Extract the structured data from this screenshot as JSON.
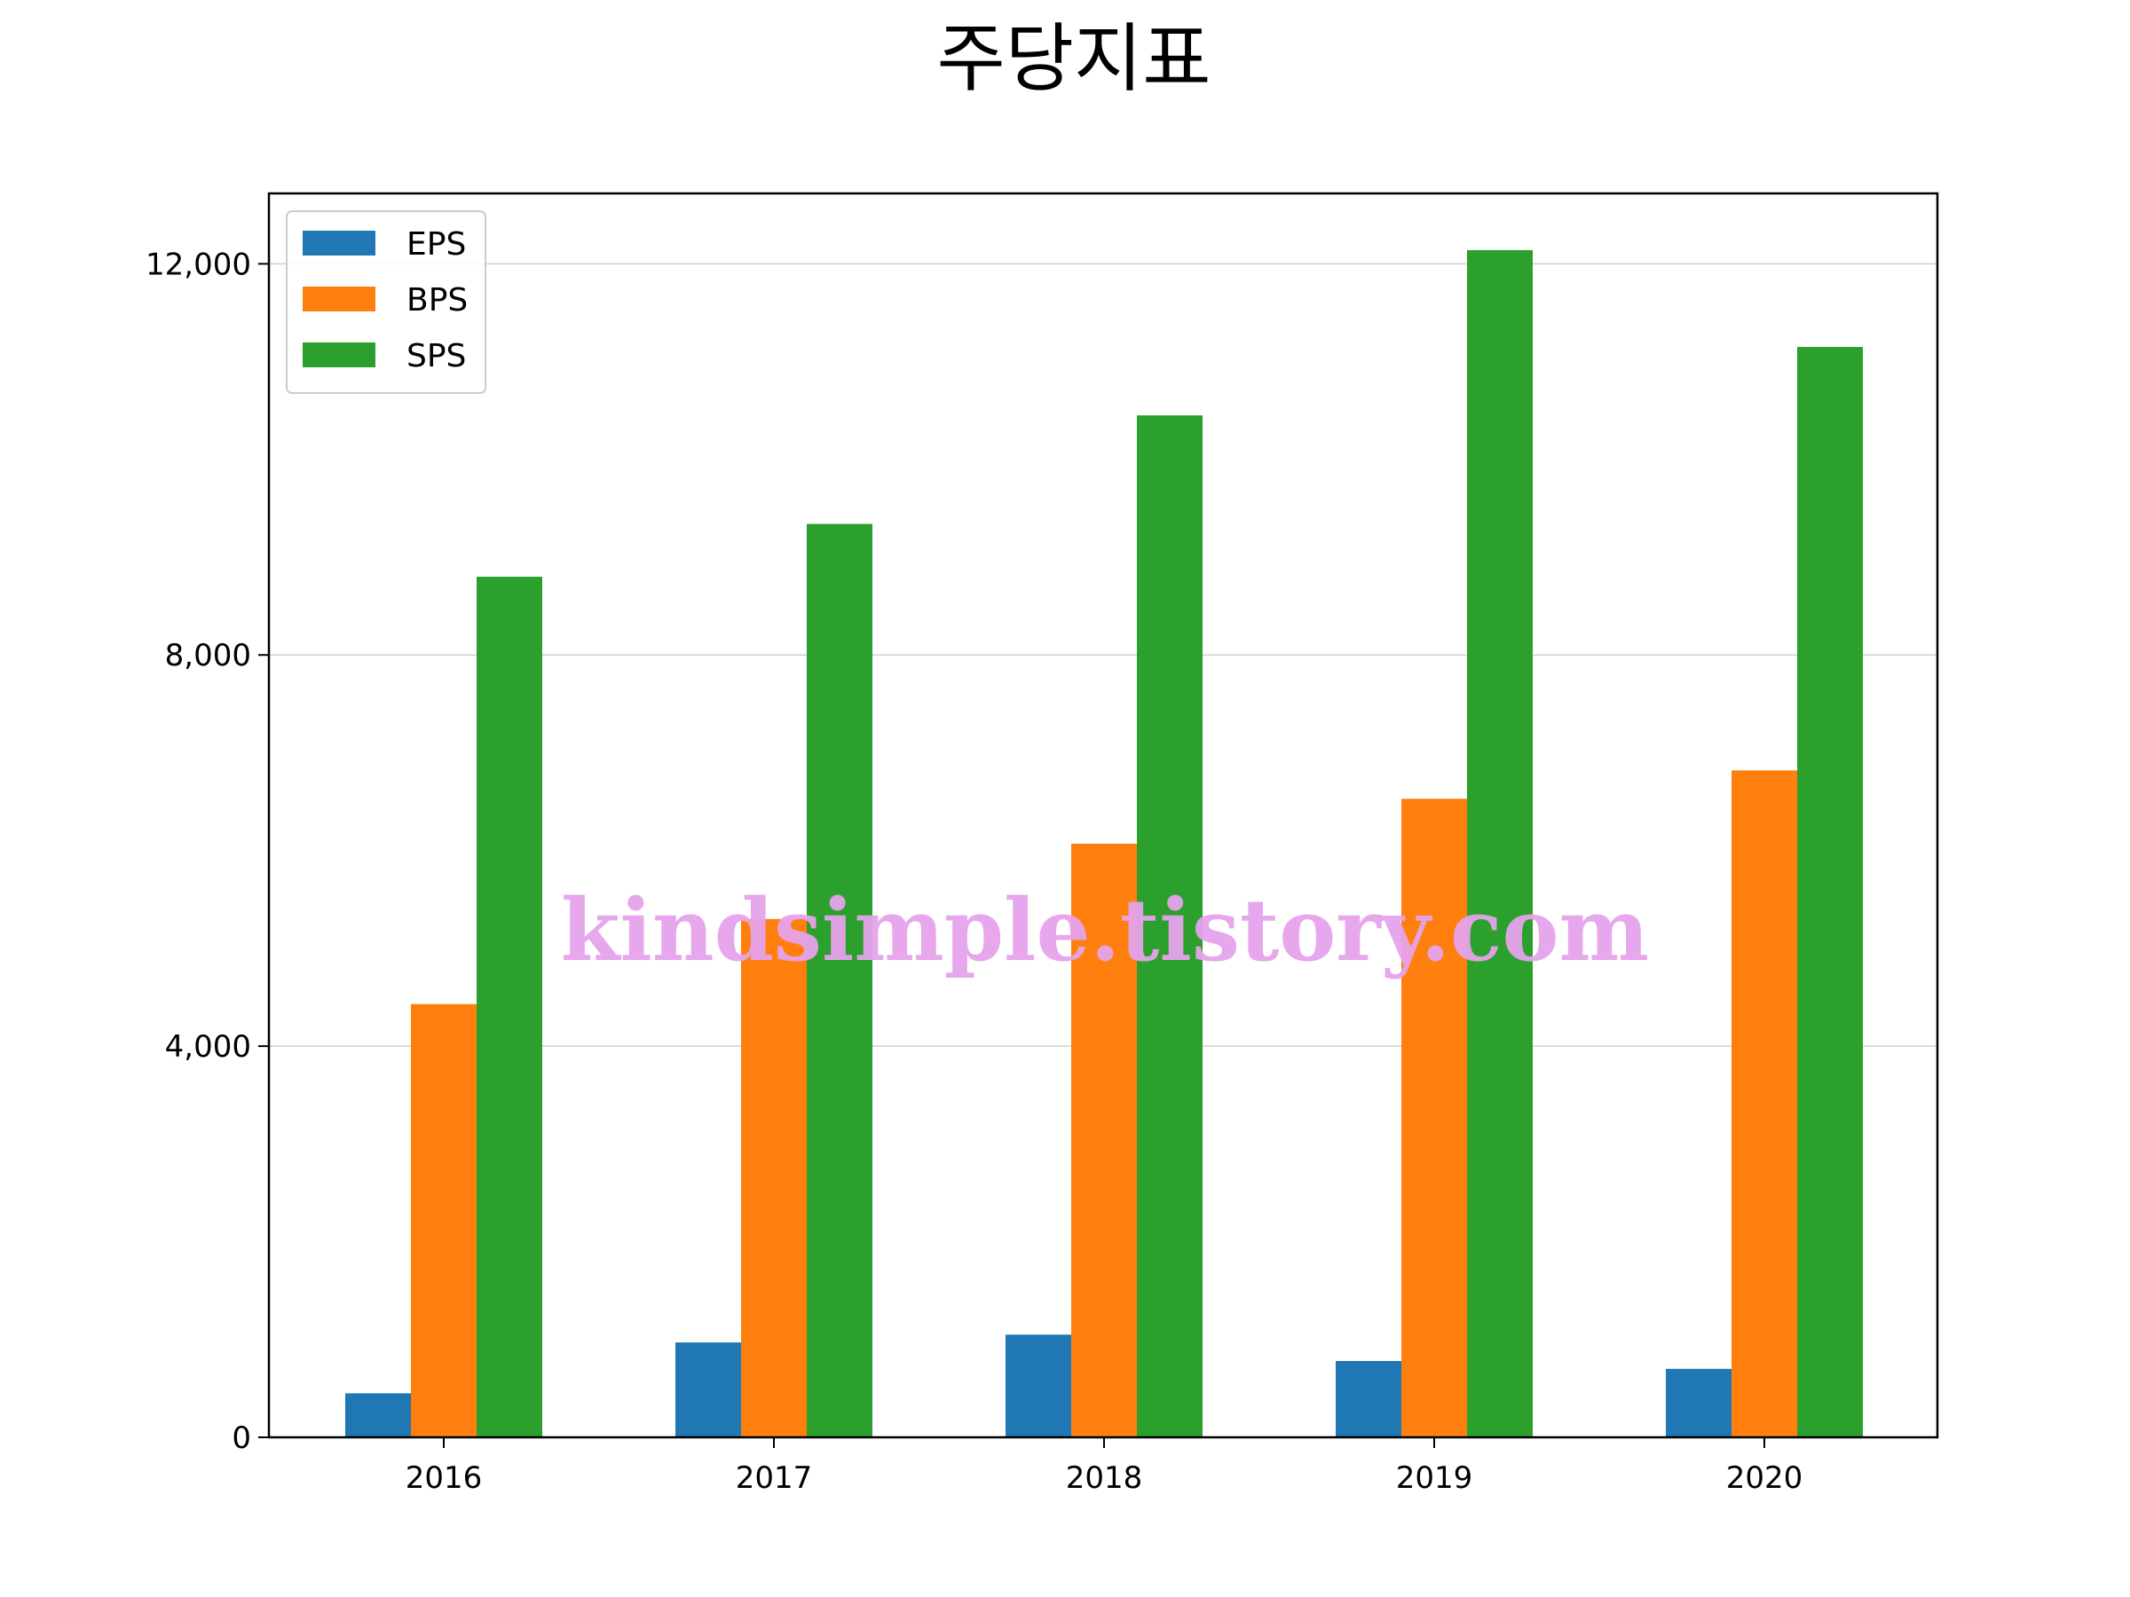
{
  "chart_data": {
    "type": "bar",
    "title": "주당지표",
    "xlabel": "",
    "ylabel": "",
    "categories": [
      "2016",
      "2017",
      "2018",
      "2019",
      "2020"
    ],
    "series": [
      {
        "name": "EPS",
        "color": "#1f77b4",
        "values": [
          450,
          970,
          1050,
          780,
          700
        ]
      },
      {
        "name": "BPS",
        "color": "#ff7f0e",
        "values": [
          4430,
          5300,
          6070,
          6530,
          6820
        ]
      },
      {
        "name": "SPS",
        "color": "#2ca02c",
        "values": [
          8800,
          9340,
          10450,
          12140,
          11150
        ]
      }
    ],
    "ylim": [
      0,
      12720
    ],
    "yticks": [
      0,
      4000,
      8000,
      12000
    ],
    "ytick_labels": [
      "0",
      "4,000",
      "8,000",
      "12,000"
    ],
    "grid": "y",
    "legend_position": "top-left",
    "watermark": "kindsimple.tistory.com"
  }
}
